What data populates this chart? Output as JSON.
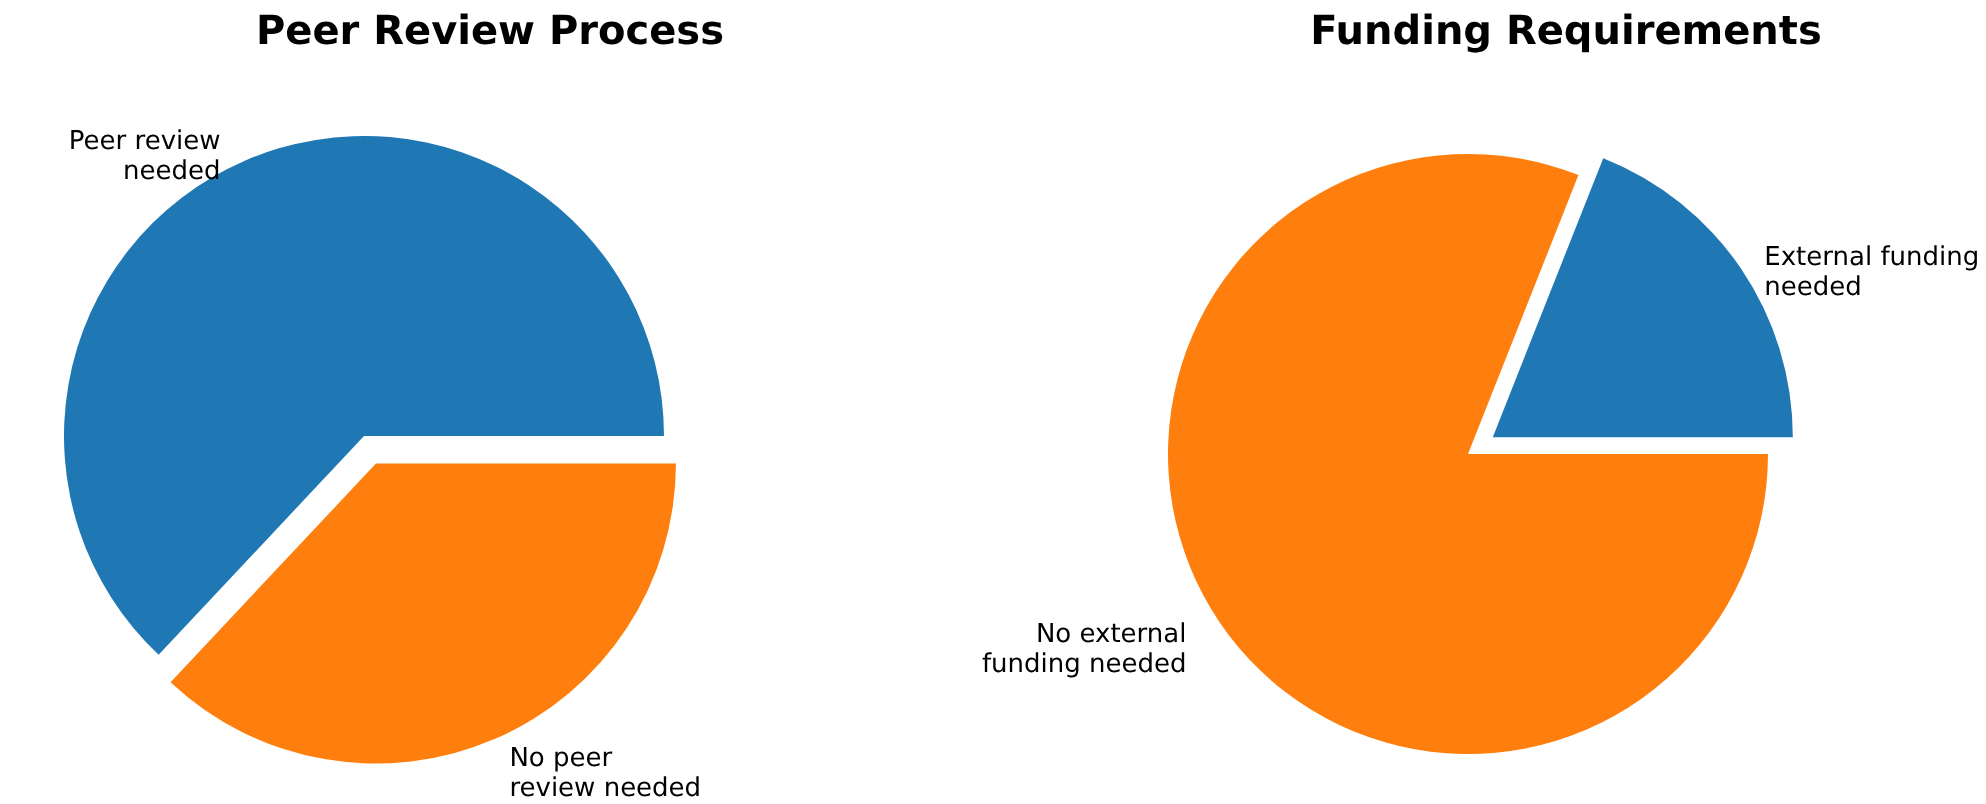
{
  "chart_data": [
    {
      "type": "pie",
      "title": "Peer Review Process",
      "categories": [
        "Peer review\nneeded",
        "No peer\nreview needed"
      ],
      "values": [
        63,
        37
      ],
      "colors": [
        "#1f77b4",
        "#ff7f0e"
      ]
    },
    {
      "type": "pie",
      "title": "Funding Requirements",
      "categories": [
        "External funding\nneeded",
        "No external\nfunding needed"
      ],
      "values": [
        19,
        81
      ],
      "colors": [
        "#1f77b4",
        "#ff7f0e"
      ]
    }
  ]
}
